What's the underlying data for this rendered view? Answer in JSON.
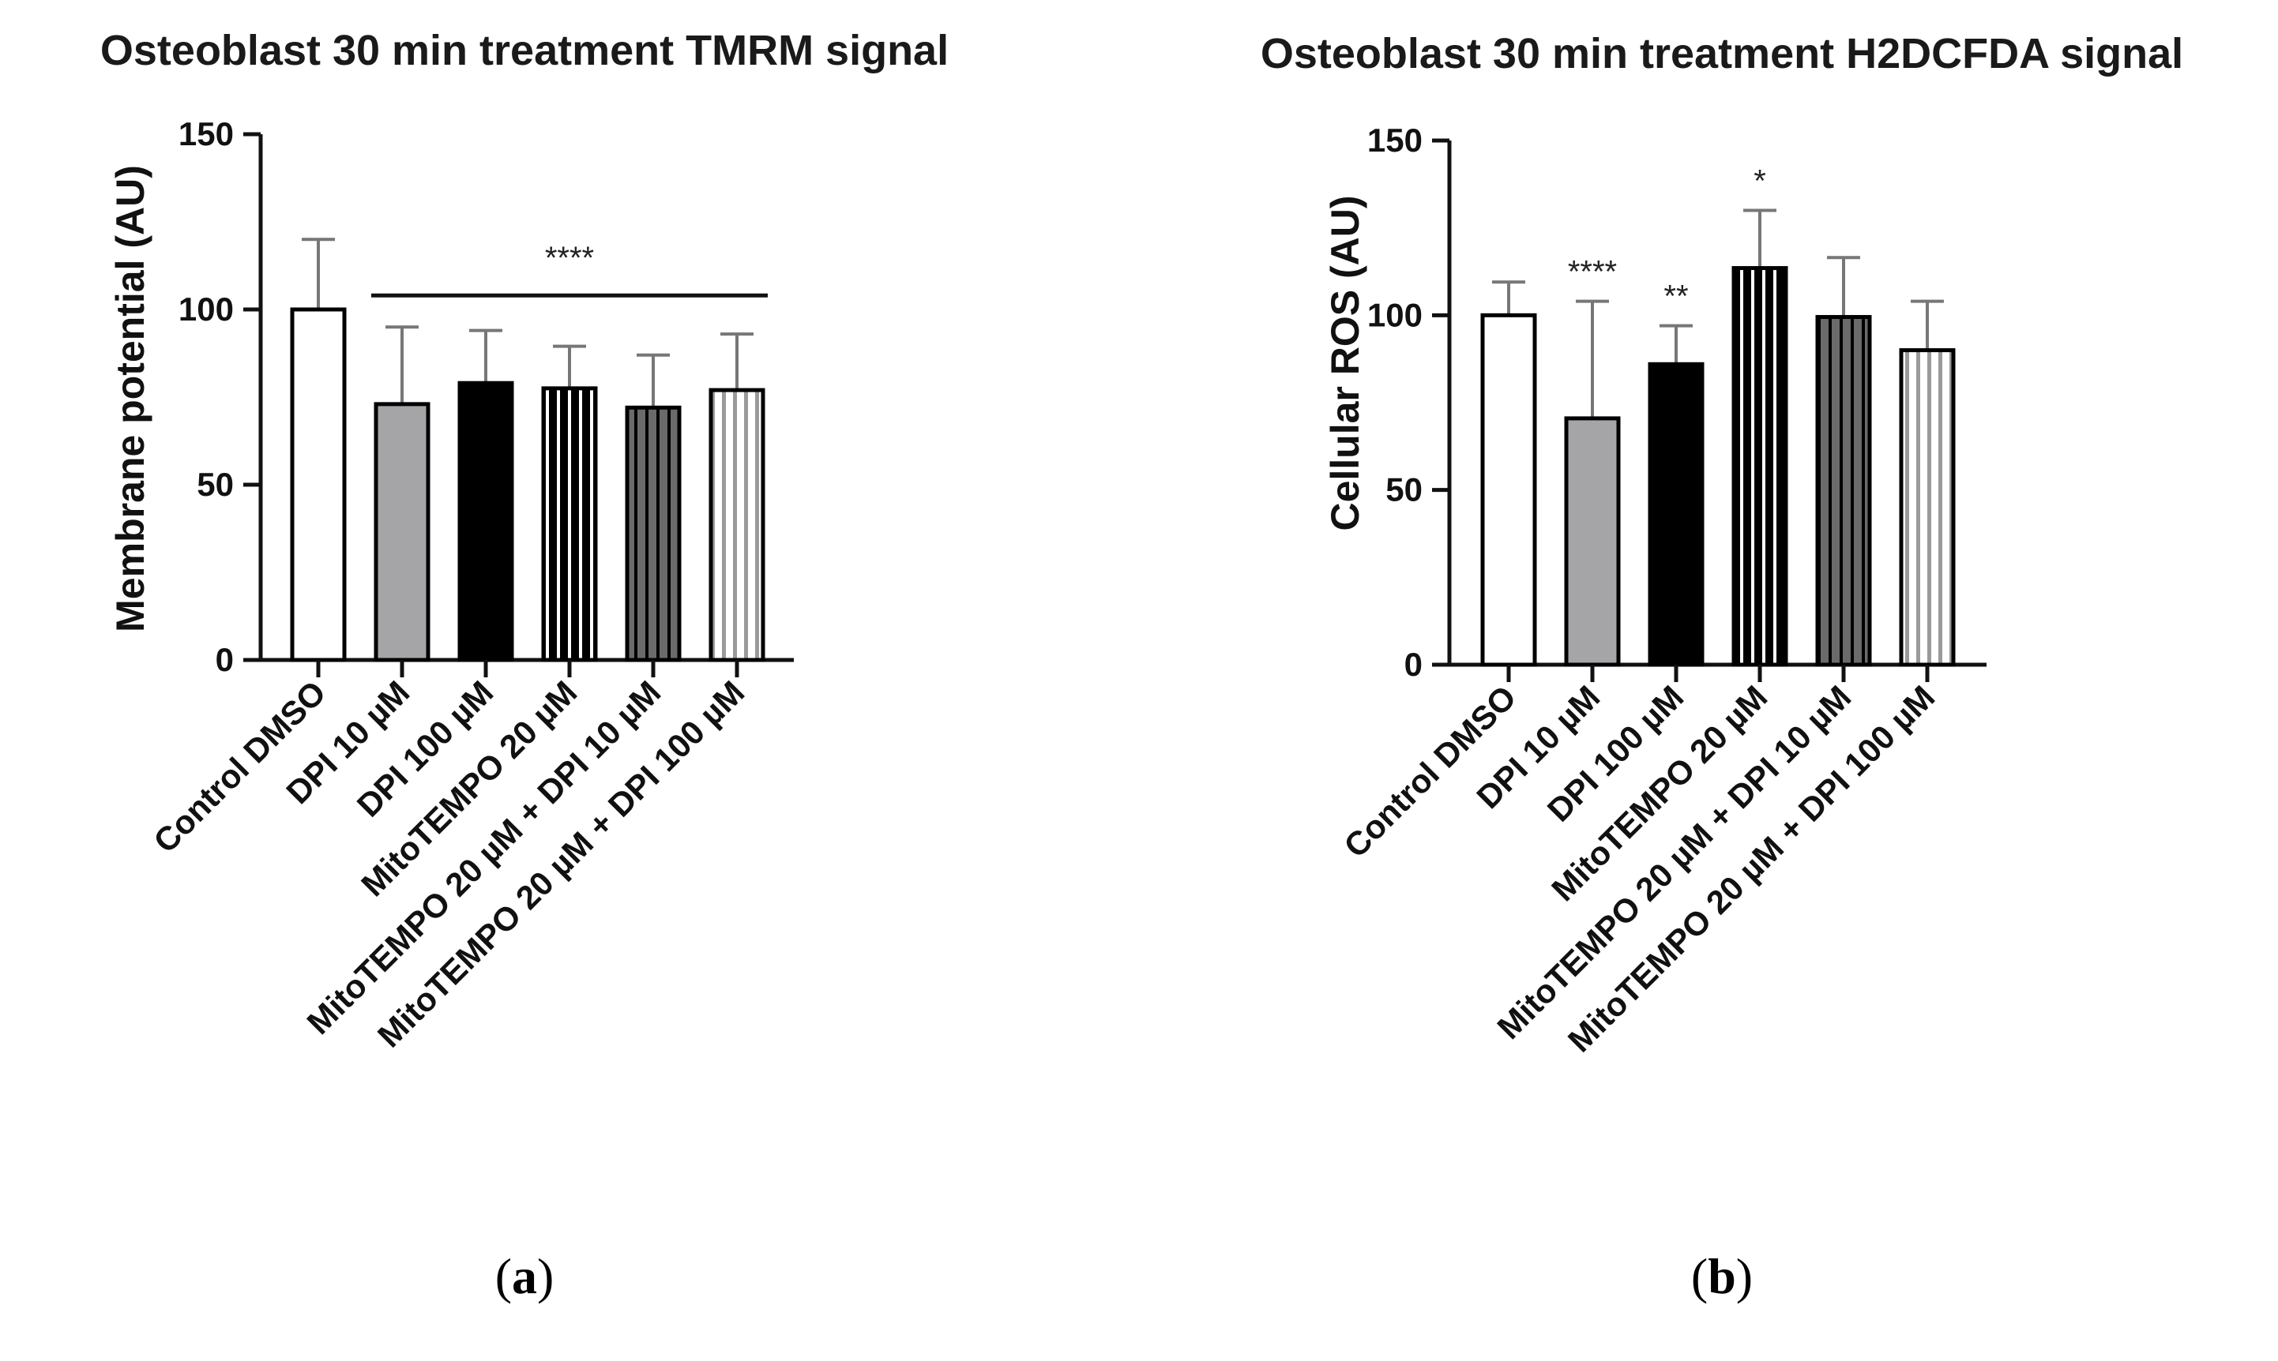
{
  "panels": [
    {
      "panel_label": "a",
      "chart_data": {
        "type": "bar",
        "title": "Osteoblast 30 min treatment TMRM signal",
        "xlabel": "",
        "ylabel": "Membrane potential (AU)",
        "ylim": [
          0,
          150
        ],
        "yticks": [
          0,
          50,
          100,
          150
        ],
        "grid": false,
        "categories": [
          "Control DMSO",
          "DPI 10 µM",
          "DPI 100 µM",
          "MitoTEMPO 20 µM",
          "MitoTEMPO 20 µM + DPI 10 µM",
          "MitoTEMPO 20 µM + DPI 100 µM"
        ],
        "values": [
          100,
          73,
          79,
          77.5,
          72,
          77
        ],
        "errors": [
          20,
          22,
          15,
          12,
          15,
          16
        ],
        "fills": [
          "white",
          "gray",
          "black",
          "black-white-stripes",
          "darkgray-stripes",
          "white-gray-stripes"
        ],
        "significance": [
          {
            "label": "****",
            "from_category": 1,
            "to_category": 5,
            "y": 104
          }
        ]
      }
    },
    {
      "panel_label": "b",
      "chart_data": {
        "type": "bar",
        "title": "Osteoblast 30 min treatment H2DCFDA signal",
        "xlabel": "",
        "ylabel": "Cellular ROS (AU)",
        "ylim": [
          0,
          150
        ],
        "yticks": [
          0,
          50,
          100,
          150
        ],
        "grid": false,
        "categories": [
          "Control DMSO",
          "DPI 10 µM",
          "DPI 100 µM",
          "MitoTEMPO 20 µM",
          "MitoTEMPO 20 µM + DPI 10 µM",
          "MitoTEMPO 20 µM + DPI 100 µM"
        ],
        "values": [
          100,
          70.5,
          86,
          113.5,
          99.5,
          90
        ],
        "errors": [
          9.5,
          33.5,
          11,
          16.5,
          17,
          14
        ],
        "fills": [
          "white",
          "gray",
          "black",
          "black-white-stripes",
          "darkgray-stripes",
          "white-gray-stripes"
        ],
        "significance": [
          {
            "label": "",
            "category": 0
          },
          {
            "label": "****",
            "category": 1
          },
          {
            "label": "**",
            "category": 2
          },
          {
            "label": "*",
            "category": 3
          },
          {
            "label": "",
            "category": 4
          },
          {
            "label": "",
            "category": 5
          }
        ]
      }
    }
  ],
  "colors": {
    "axis": "#111111",
    "error_bar": "#777777",
    "bar_outline": "#000000",
    "gray_fill": "#a5a5a7",
    "black_fill": "#000000",
    "white_fill": "#ffffff",
    "stripe_dark": "#6b6b6b",
    "stripe_light": "#9a9a9a"
  }
}
